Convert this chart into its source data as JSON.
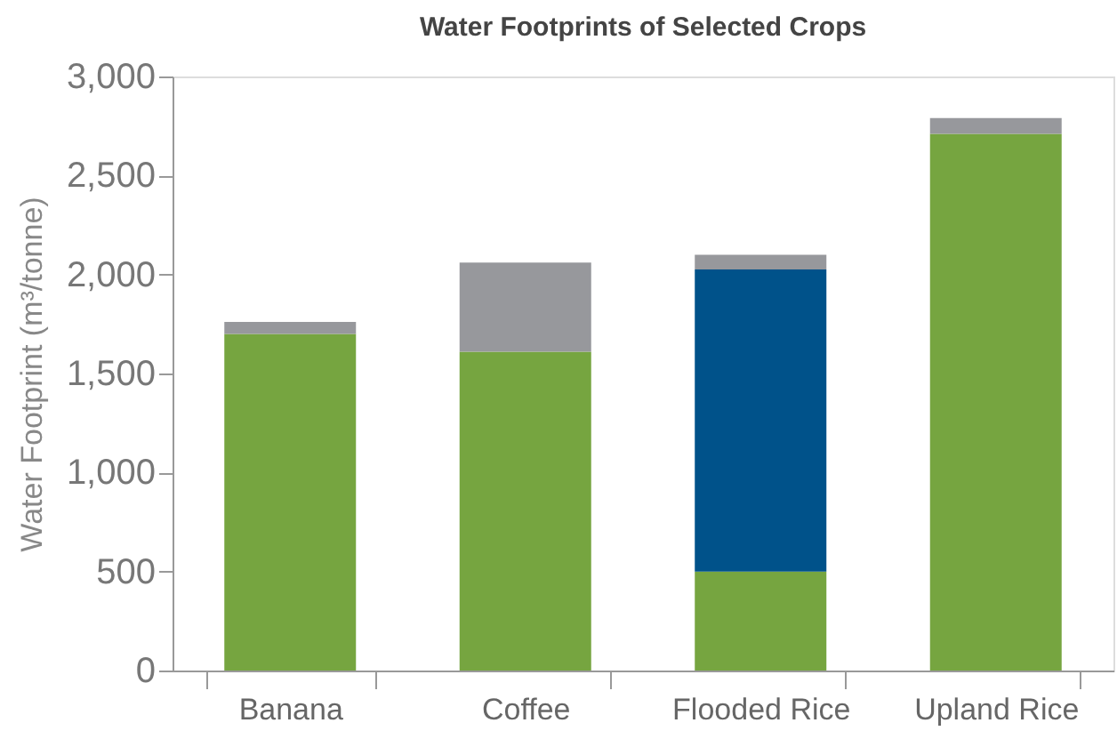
{
  "chart_data": {
    "type": "bar",
    "stacked": true,
    "title": "Water Footprints of Selected Crops",
    "ylabel": "Water Footprint (m³/tonne)",
    "categories": [
      "Banana",
      "Coffee",
      "Flooded Rice",
      "Upland Rice"
    ],
    "series": [
      {
        "color": "#76a540",
        "values": [
          1700,
          1610,
          500,
          2710
        ]
      },
      {
        "color": "#00528a",
        "values": [
          null,
          null,
          1525,
          null
        ]
      },
      {
        "color": "#97989c",
        "values": [
          60,
          450,
          75,
          80
        ]
      }
    ],
    "ylim": [
      0,
      3000
    ],
    "yticks": [
      {
        "value": 0,
        "label": "0"
      },
      {
        "value": 500,
        "label": "500"
      },
      {
        "value": 1000,
        "label": "1,000"
      },
      {
        "value": 1500,
        "label": "1,500"
      },
      {
        "value": 2000,
        "label": "2,000"
      },
      {
        "value": 2500,
        "label": "2,500"
      },
      {
        "value": 3000,
        "label": "3,000"
      }
    ],
    "grid": false,
    "legend": false
  }
}
